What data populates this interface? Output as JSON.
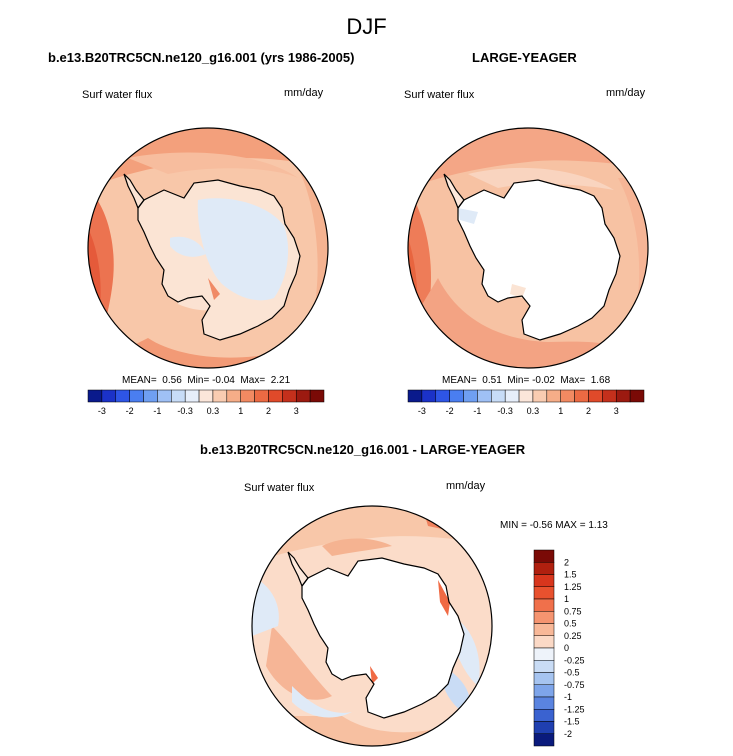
{
  "figure": {
    "title": "DJF"
  },
  "panels": [
    {
      "title": "b.e13.B20TRC5CN.ne120_g16.001 (yrs 1986-2005)",
      "variable": "Surf water flux",
      "units": "mm/day",
      "stats": {
        "mean_label": "MEAN=",
        "mean": "0.56",
        "min_label": "Min=",
        "min": "-0.04",
        "max_label": "Max=",
        "max": "2.21"
      }
    },
    {
      "title": "LARGE-YEAGER",
      "variable": "Surf water flux",
      "units": "mm/day",
      "stats": {
        "mean_label": "MEAN=",
        "mean": "0.51",
        "min_label": "Min=",
        "min": "-0.02",
        "max_label": "Max=",
        "max": "1.68"
      }
    },
    {
      "title": "b.e13.B20TRC5CN.ne120_g16.001 - LARGE-YEAGER",
      "variable": "Surf water flux",
      "units": "mm/day",
      "stats_text": "MIN =  -0.56 MAX =  1.13"
    }
  ],
  "colorbar_horizontal": {
    "labels": [
      "-3",
      "-2",
      "-1",
      "-0.3",
      "0.3",
      "1",
      "2",
      "3"
    ],
    "colors": [
      "#0a1a8c",
      "#1b32c8",
      "#2e55e6",
      "#4a7ef0",
      "#6f9ff2",
      "#9fc0f5",
      "#c7dcf7",
      "#e6eefa",
      "#fbe6da",
      "#f9ccb1",
      "#f6ad88",
      "#f28a62",
      "#ec6a43",
      "#e04a2a",
      "#c4301c",
      "#9c1a10",
      "#7a0a06"
    ]
  },
  "colorbar_vertical": {
    "labels": [
      "2",
      "1.5",
      "1.25",
      "1",
      "0.75",
      "0.5",
      "0.25",
      "0",
      "-0.25",
      "-0.5",
      "-0.75",
      "-1",
      "-1.25",
      "-1.5",
      "-2"
    ],
    "colors": [
      "#7a0a06",
      "#b0200f",
      "#d8361d",
      "#e8512e",
      "#f0704b",
      "#f59470",
      "#f8b898",
      "#fbd9c6",
      "#eef3fa",
      "#c9dcf5",
      "#a6c4f0",
      "#7ea5ea",
      "#5a84e0",
      "#3a62d0",
      "#1f3fb0",
      "#0a1a7c"
    ]
  }
}
